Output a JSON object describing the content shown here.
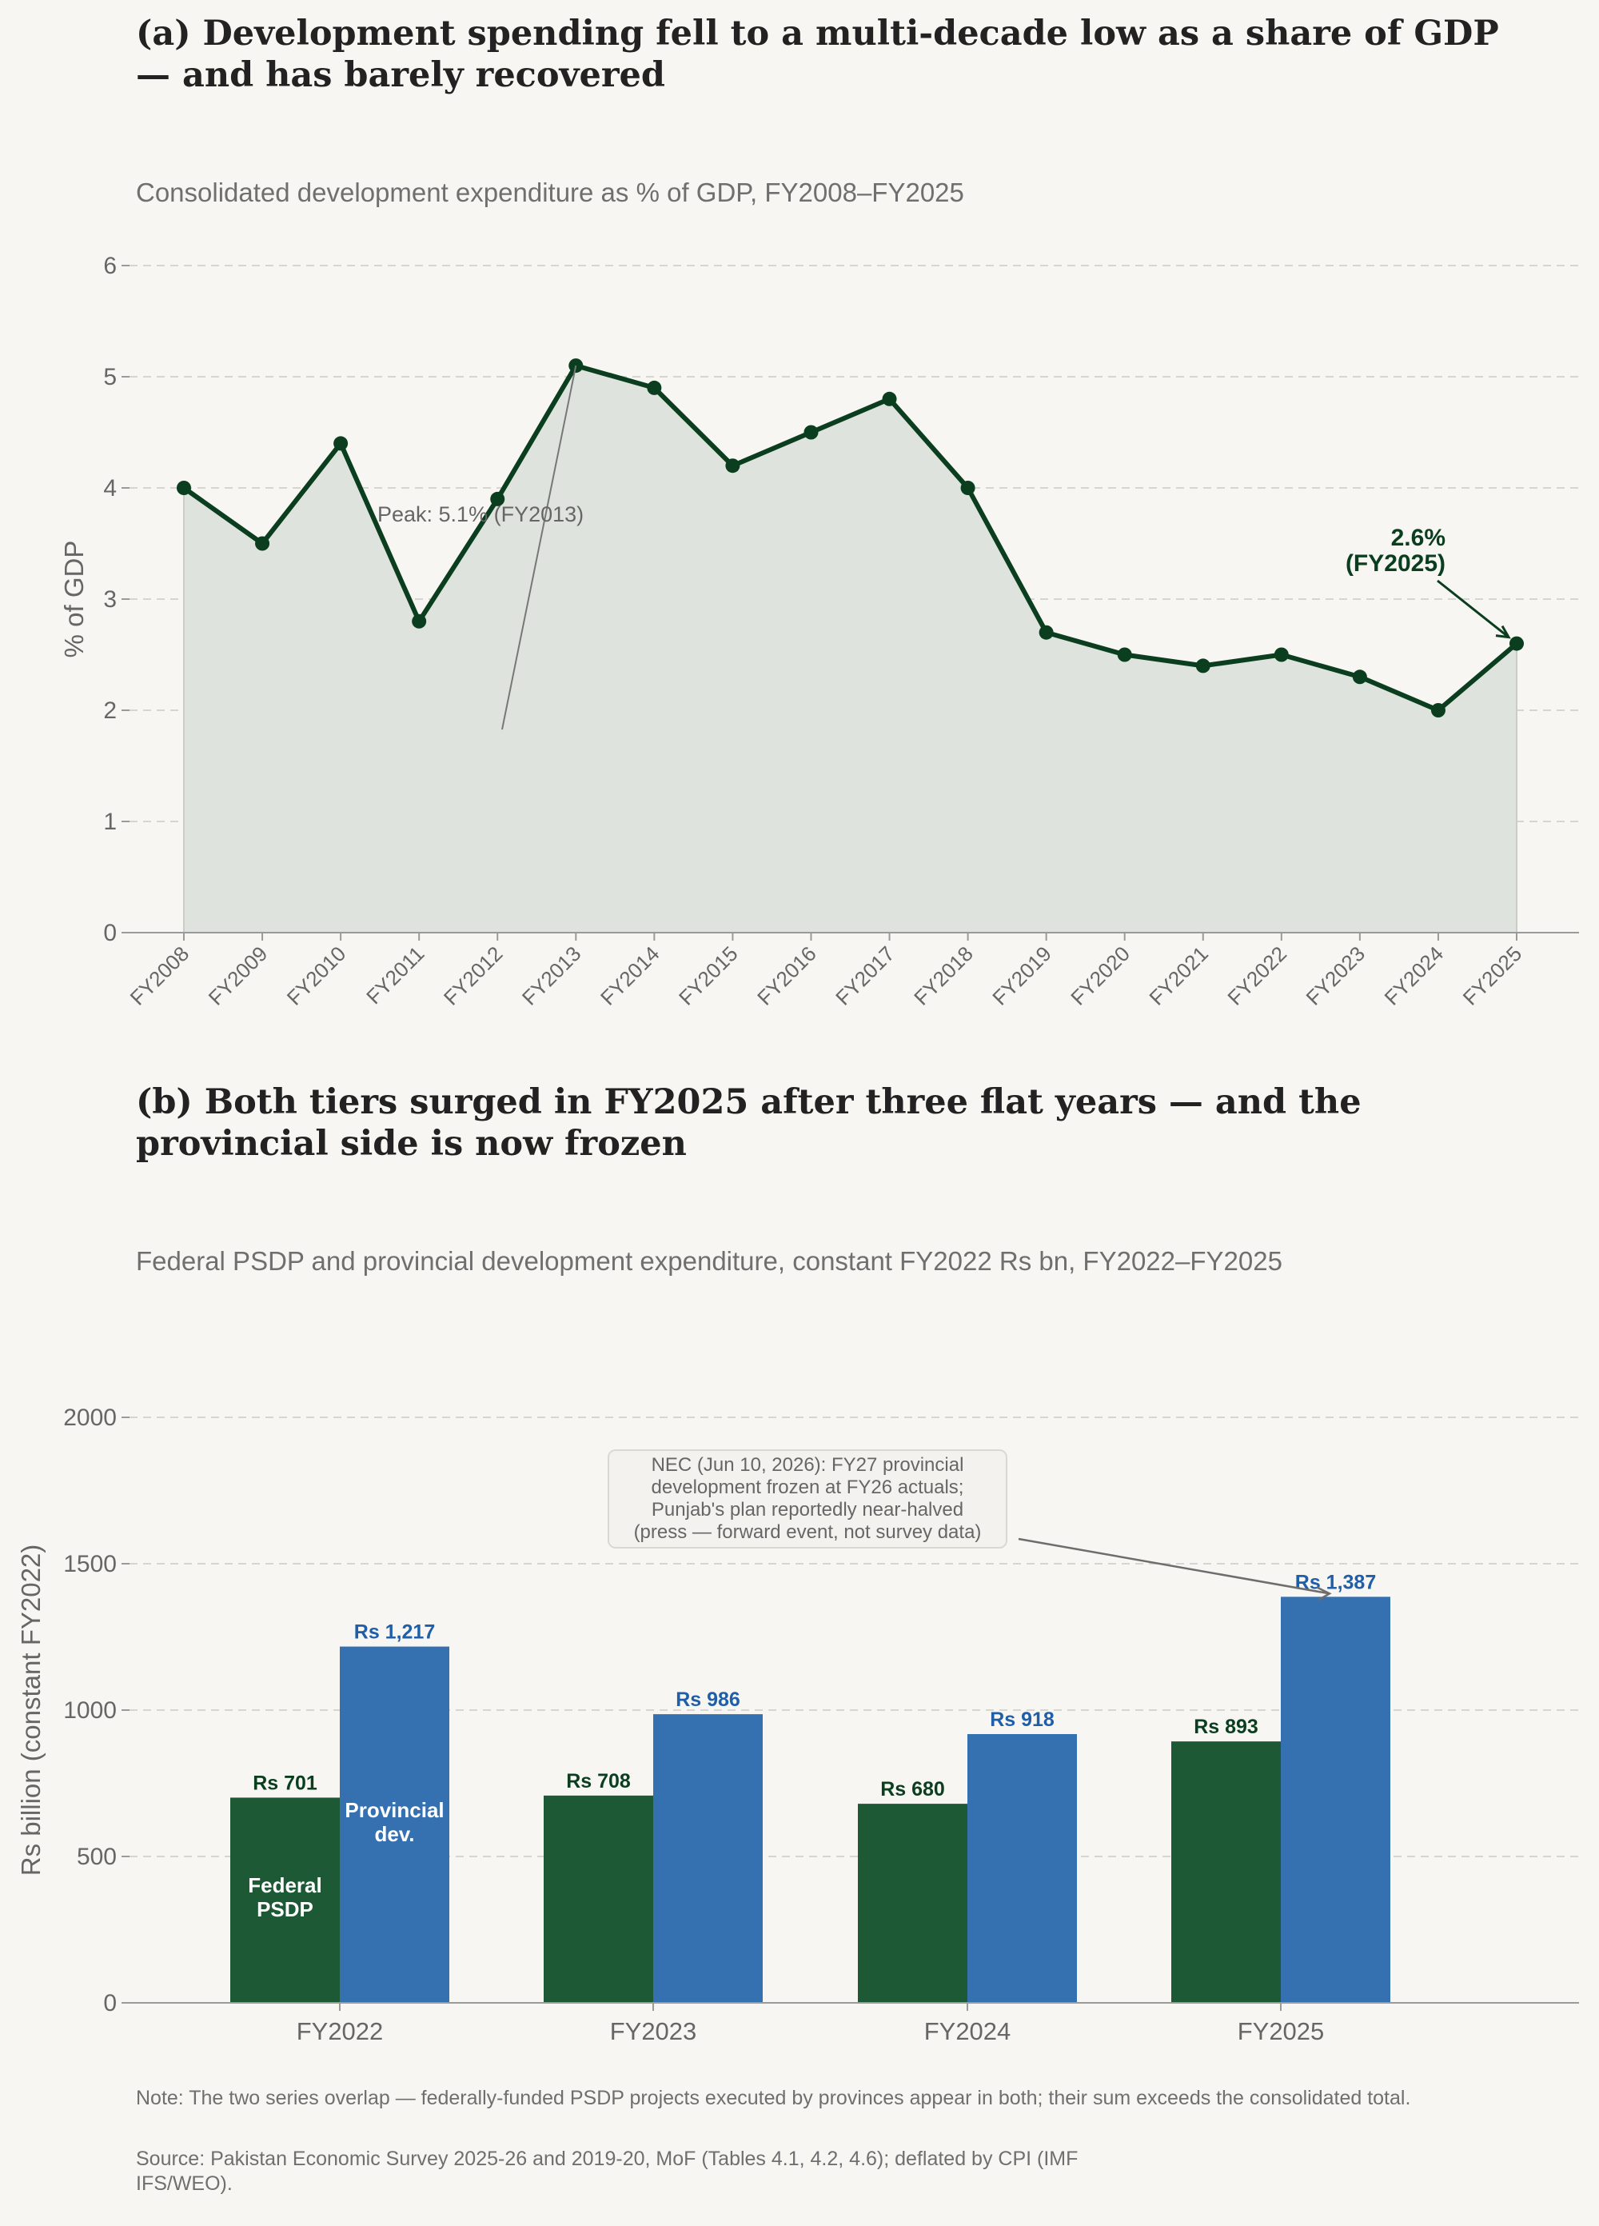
{
  "panel_a": {
    "title": "(a)  Development spending fell to a multi-decade low as a share of GDP — and has barely recovered",
    "subtitle": "Consolidated development expenditure as % of GDP, FY2008–FY2025",
    "peak_annotation": "Peak: 5.1%  (FY2013)",
    "end_annotation_value": "2.6%",
    "end_annotation_year": "(FY2025)"
  },
  "panel_b": {
    "title": "(b)  Both tiers surged in FY2025 after three flat years — and the provincial side is now frozen",
    "subtitle": "Federal PSDP and provincial development expenditure, constant FY2022 Rs bn, FY2022–FY2025",
    "callout_lines": [
      "NEC (Jun 10, 2026): FY27 provincial",
      "development frozen at FY26 actuals;",
      "Punjab's plan reportedly near-halved",
      "(press — forward event, not survey data)"
    ],
    "inside_label_federal": [
      "Federal",
      "PSDP"
    ],
    "inside_label_provincial": [
      "Provincial",
      "dev."
    ]
  },
  "note": "Note: The two series overlap — federally-funded PSDP projects executed by provinces appear in both; their sum exceeds the consolidated total.",
  "source": "Source: Pakistan Economic Survey 2025-26 and 2019-20, MoF (Tables 4.1, 4.2, 4.6); deflated by CPI (IMF IFS/WEO).",
  "colors": {
    "line": "#0b3d1f",
    "area_fill": "#dfe3dd",
    "federal": "#1e5936",
    "provincial": "#3570b0",
    "provincial_label": "#1f5ea8",
    "grid": "#d6d5d0",
    "axis": "#9a9a9a",
    "tick_text": "#666666"
  },
  "chart_data": [
    {
      "type": "line",
      "x": [
        "FY2008",
        "FY2009",
        "FY2010",
        "FY2011",
        "FY2012",
        "FY2013",
        "FY2014",
        "FY2015",
        "FY2016",
        "FY2017",
        "FY2018",
        "FY2019",
        "FY2020",
        "FY2021",
        "FY2022",
        "FY2023",
        "FY2024",
        "FY2025"
      ],
      "values": [
        4.0,
        3.5,
        4.4,
        2.8,
        3.9,
        5.1,
        4.9,
        4.2,
        4.5,
        4.8,
        4.0,
        2.7,
        2.5,
        2.4,
        2.5,
        2.3,
        2.0,
        2.6
      ],
      "ylabel": "% of GDP",
      "ylim": [
        0,
        6
      ],
      "yticks": [
        0,
        1,
        2,
        3,
        4,
        5,
        6
      ],
      "grid": true,
      "area_fill": true
    },
    {
      "type": "bar",
      "categories": [
        "FY2022",
        "FY2023",
        "FY2024",
        "FY2025"
      ],
      "series": [
        {
          "name": "Federal PSDP",
          "values": [
            701,
            708,
            680,
            893
          ],
          "labels": [
            "Rs 701",
            "Rs 708",
            "Rs 680",
            "Rs 893"
          ]
        },
        {
          "name": "Provincial dev.",
          "values": [
            1217,
            986,
            918,
            1387
          ],
          "labels": [
            "Rs 1,217",
            "Rs 986",
            "Rs 918",
            "Rs 1,387"
          ]
        }
      ],
      "ylabel": "Rs billion (constant FY2022)",
      "ylim": [
        0,
        2000
      ],
      "yticks": [
        0,
        500,
        1000,
        1500,
        2000
      ],
      "grid": true
    }
  ]
}
